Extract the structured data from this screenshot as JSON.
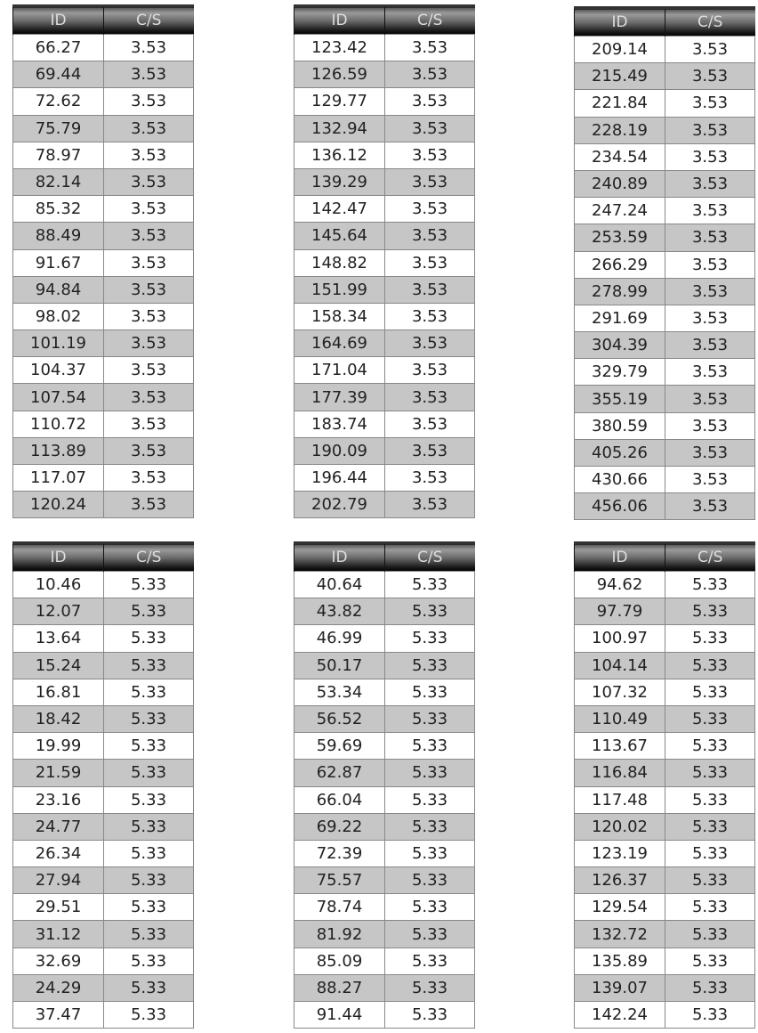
{
  "header": {
    "id": "ID",
    "cs": "C/S"
  },
  "colors": {
    "row_alt": "#c6c6c6",
    "header": "#1a1a1a"
  },
  "tables": [
    {
      "cs": "3.53",
      "ids": [
        "66.27",
        "69.44",
        "72.62",
        "75.79",
        "78.97",
        "82.14",
        "85.32",
        "88.49",
        "91.67",
        "94.84",
        "98.02",
        "101.19",
        "104.37",
        "107.54",
        "110.72",
        "113.89",
        "117.07",
        "120.24"
      ]
    },
    {
      "cs": "3.53",
      "ids": [
        "123.42",
        "126.59",
        "129.77",
        "132.94",
        "136.12",
        "139.29",
        "142.47",
        "145.64",
        "148.82",
        "151.99",
        "158.34",
        "164.69",
        "171.04",
        "177.39",
        "183.74",
        "190.09",
        "196.44",
        "202.79"
      ]
    },
    {
      "cs": "3.53",
      "ids": [
        "209.14",
        "215.49",
        "221.84",
        "228.19",
        "234.54",
        "240.89",
        "247.24",
        "253.59",
        "266.29",
        "278.99",
        "291.69",
        "304.39",
        "329.79",
        "355.19",
        "380.59",
        "405.26",
        "430.66",
        "456.06"
      ]
    },
    {
      "cs": "5.33",
      "ids": [
        "10.46",
        "12.07",
        "13.64",
        "15.24",
        "16.81",
        "18.42",
        "19.99",
        "21.59",
        "23.16",
        "24.77",
        "26.34",
        "27.94",
        "29.51",
        "31.12",
        "32.69",
        "24.29",
        "37.47"
      ]
    },
    {
      "cs": "5.33",
      "ids": [
        "40.64",
        "43.82",
        "46.99",
        "50.17",
        "53.34",
        "56.52",
        "59.69",
        "62.87",
        "66.04",
        "69.22",
        "72.39",
        "75.57",
        "78.74",
        "81.92",
        "85.09",
        "88.27",
        "91.44"
      ]
    },
    {
      "cs": "5.33",
      "ids": [
        "94.62",
        "97.79",
        "100.97",
        "104.14",
        "107.32",
        "110.49",
        "113.67",
        "116.84",
        "117.48",
        "120.02",
        "123.19",
        "126.37",
        "129.54",
        "132.72",
        "135.89",
        "139.07",
        "142.24"
      ]
    }
  ]
}
